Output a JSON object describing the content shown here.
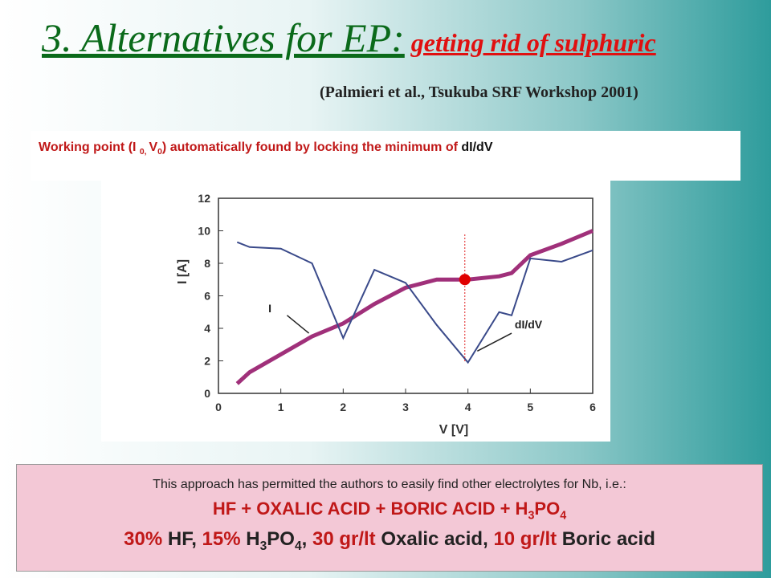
{
  "title": {
    "main": "3. Alternatives for EP:",
    "sub": "getting rid of sulphuric"
  },
  "citation": "(Palmieri et al., Tsukuba SRF Workshop 2001)",
  "caption": [
    "Working  point (I ",
    "0, ",
    "V",
    "0",
    ") automatically found by locking the minimum of ",
    "dI/dV"
  ],
  "chart_data": {
    "type": "line",
    "xlabel": "V  [V]",
    "ylabel": "I  [A]",
    "xlim": [
      0,
      6
    ],
    "ylim": [
      0,
      12
    ],
    "xticks": [
      0,
      1,
      2,
      3,
      4,
      5,
      6
    ],
    "yticks": [
      0,
      2,
      4,
      6,
      8,
      10,
      12
    ],
    "x": [
      0.3,
      0.5,
      1,
      1.5,
      2,
      2.5,
      3,
      3.5,
      4,
      4.5,
      4.7,
      5,
      5.5,
      6
    ],
    "series": [
      {
        "name": "I",
        "color": "#a0307a",
        "values": [
          0.6,
          1.3,
          2.4,
          3.5,
          4.3,
          5.5,
          6.5,
          7.0,
          7.0,
          7.2,
          7.4,
          8.5,
          9.2,
          10.0
        ]
      },
      {
        "name": "dI/dV",
        "color": "#3a4a8a",
        "values": [
          9.3,
          9.0,
          8.9,
          8.0,
          3.4,
          7.6,
          6.8,
          4.2,
          1.9,
          5.0,
          4.8,
          8.3,
          8.1,
          8.8
        ]
      }
    ],
    "working_point": {
      "x": 3.95,
      "y": 7.0
    }
  },
  "note": "This approach  has permitted the authors to easily find other electrolytes for Nb, i.e.:",
  "formula": [
    "HF  + OXALIC ACID + BORIC ACID  + H",
    "3",
    "PO",
    "4"
  ],
  "composition": [
    "30%",
    " HF,  ",
    "15%",
    " H",
    "3",
    "PO",
    "4",
    ",  ",
    "30 gr/lt",
    " Oxalic acid,  ",
    "10 gr/lt",
    " Boric acid"
  ]
}
